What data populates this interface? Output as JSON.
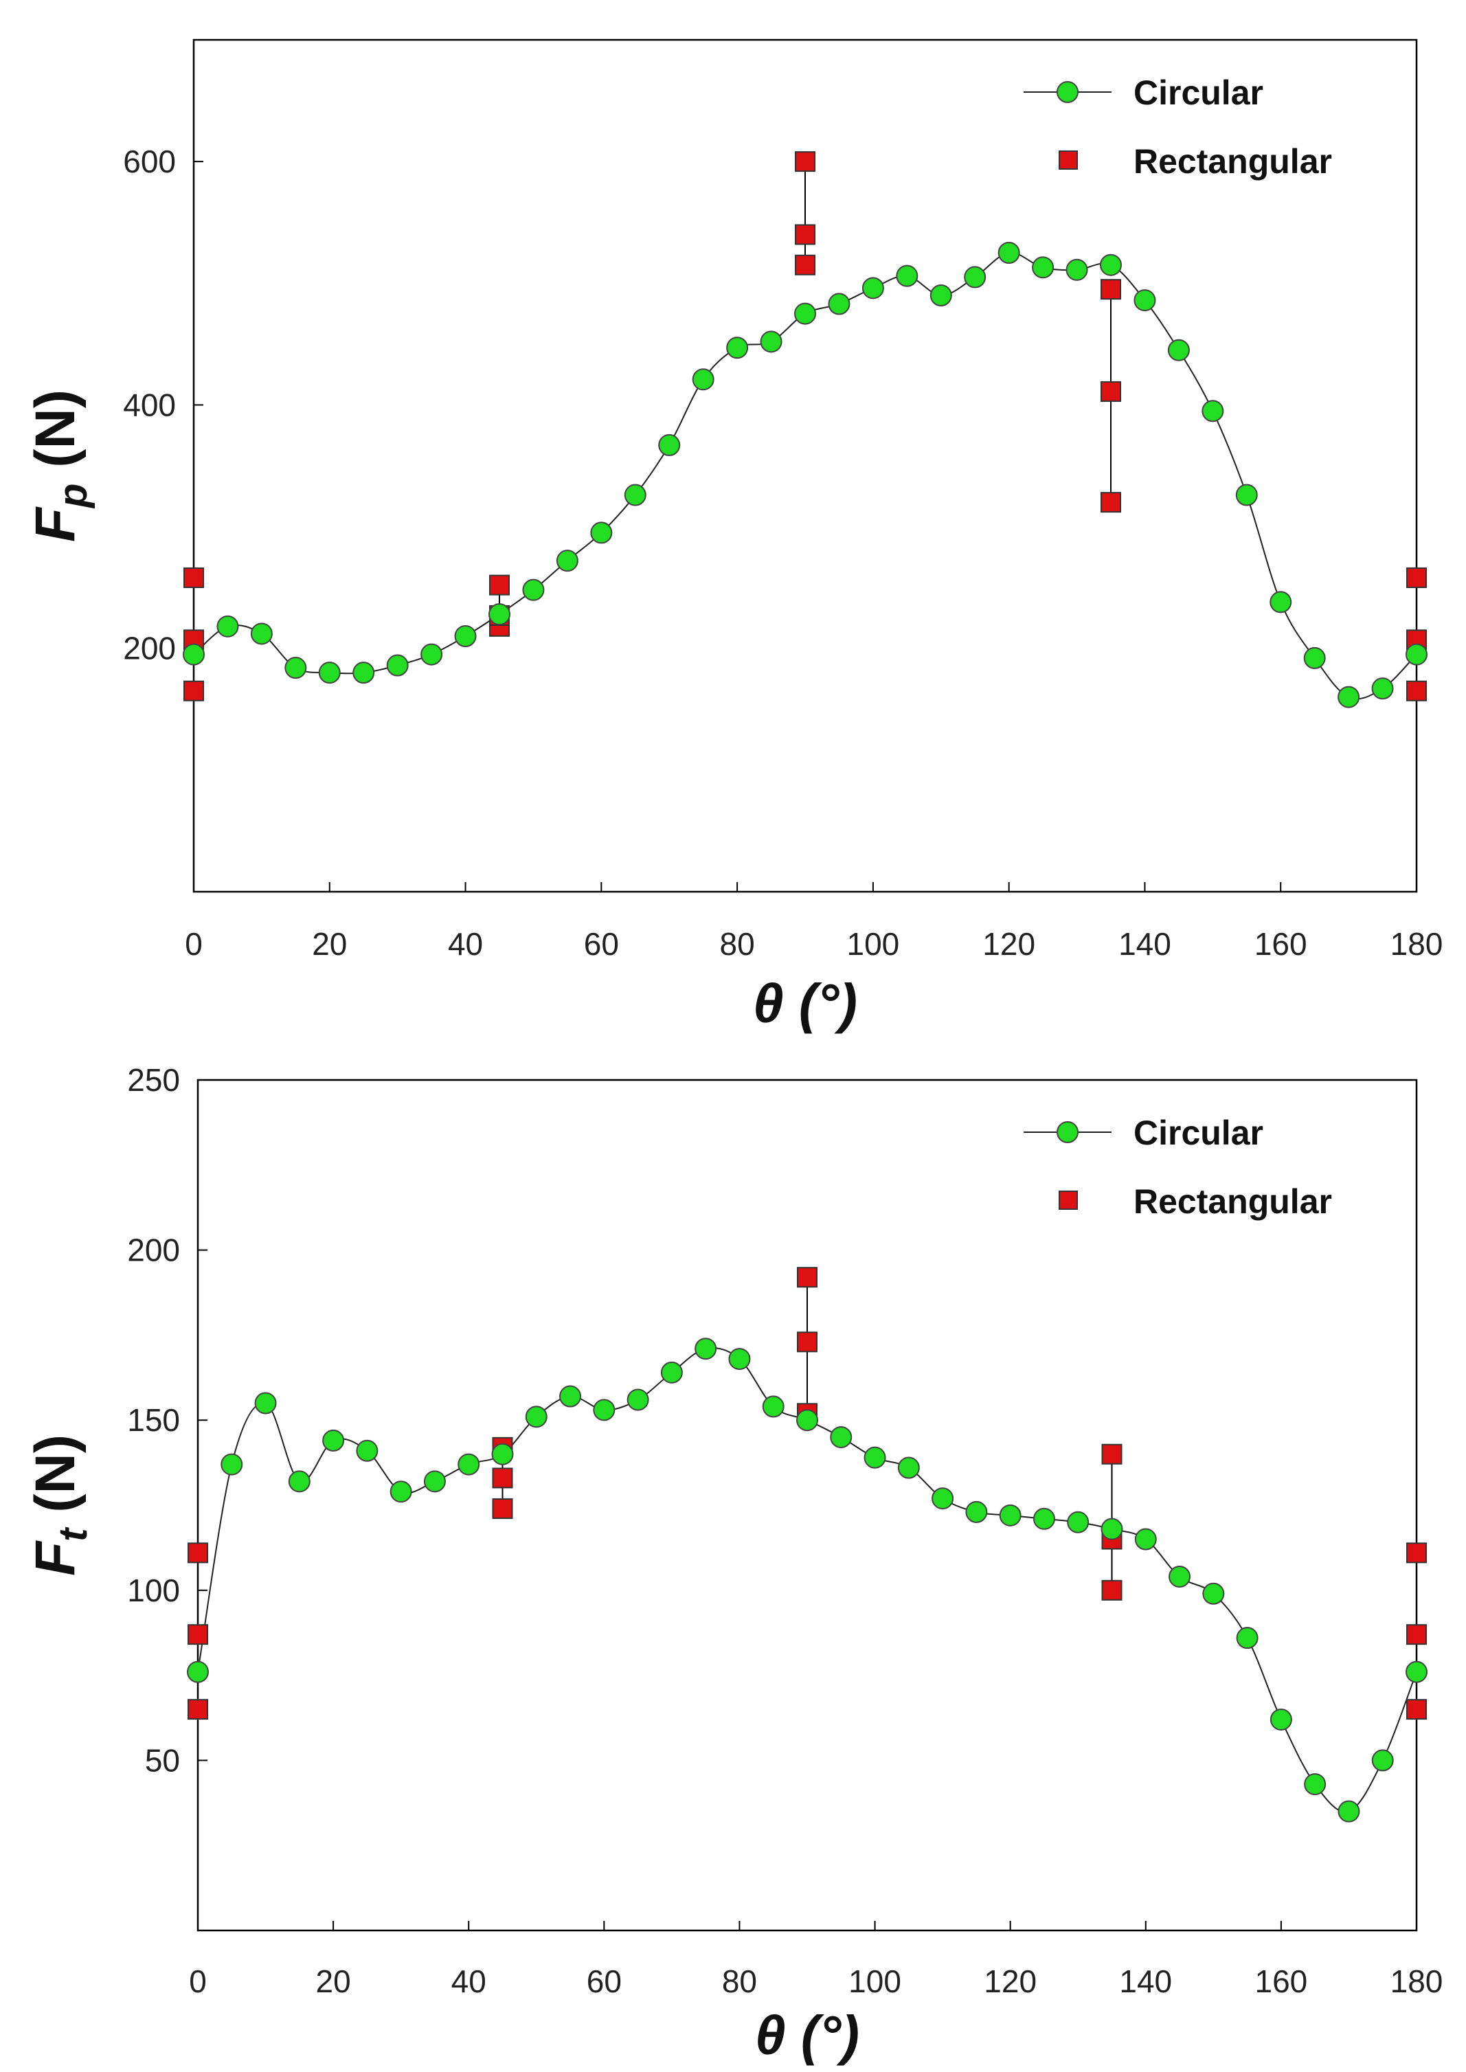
{
  "chart_data": [
    {
      "type": "scatter",
      "xlabel": "θ (°)",
      "ylabel": "Fp (N)",
      "ylabel_main": "F",
      "ylabel_sub": "p",
      "ylabel_unit": " (N)",
      "xlim": [
        0,
        180
      ],
      "ylim": [
        0,
        700
      ],
      "xticks": [
        0,
        20,
        40,
        60,
        80,
        100,
        120,
        140,
        160,
        180
      ],
      "yticks": [
        200,
        400,
        600
      ],
      "grid": false,
      "legend_position": "top-right",
      "series": [
        {
          "name": "Circular",
          "color": "#22dd22",
          "marker": "circle",
          "x": [
            0,
            5,
            10,
            15,
            20,
            25,
            30,
            35,
            40,
            45,
            50,
            55,
            60,
            65,
            70,
            75,
            80,
            85,
            90,
            95,
            100,
            105,
            110,
            115,
            120,
            125,
            130,
            135,
            140,
            145,
            150,
            155,
            160,
            165,
            170,
            175,
            180
          ],
          "y": [
            195,
            218,
            212,
            184,
            180,
            180,
            186,
            195,
            210,
            228,
            248,
            272,
            295,
            326,
            367,
            421,
            447,
            452,
            475,
            483,
            496,
            506,
            490,
            505,
            525,
            513,
            511,
            515,
            486,
            445,
            395,
            326,
            238,
            192,
            160,
            167,
            195
          ]
        },
        {
          "name": "Rectangular",
          "color": "#dd1111",
          "marker": "square",
          "x": [
            0,
            0,
            0,
            45,
            45,
            45,
            90,
            90,
            90,
            135,
            135,
            135,
            180,
            180,
            180
          ],
          "y": [
            165,
            207,
            258,
            218,
            227,
            252,
            515,
            540,
            600,
            320,
            411,
            495,
            165,
            207,
            258
          ]
        }
      ]
    },
    {
      "type": "scatter",
      "xlabel": "θ (°)",
      "ylabel": "Ft (N)",
      "ylabel_main": "F",
      "ylabel_sub": "t",
      "ylabel_unit": " (N)",
      "xlim": [
        0,
        180
      ],
      "ylim": [
        0,
        250
      ],
      "xticks": [
        0,
        20,
        40,
        60,
        80,
        100,
        120,
        140,
        160,
        180
      ],
      "yticks": [
        50,
        100,
        150,
        200,
        250
      ],
      "grid": false,
      "legend_position": "top-right",
      "series": [
        {
          "name": "Circular",
          "color": "#22dd22",
          "marker": "circle",
          "x": [
            0,
            5,
            10,
            15,
            20,
            25,
            30,
            35,
            40,
            45,
            50,
            55,
            60,
            65,
            70,
            75,
            80,
            85,
            90,
            95,
            100,
            105,
            110,
            115,
            120,
            125,
            130,
            135,
            140,
            145,
            150,
            155,
            160,
            165,
            170,
            175,
            180
          ],
          "y": [
            76,
            137,
            155,
            132,
            144,
            141,
            129,
            132,
            137,
            140,
            151,
            157,
            153,
            156,
            164,
            171,
            168,
            154,
            150,
            145,
            139,
            136,
            127,
            123,
            122,
            121,
            120,
            118,
            115,
            104,
            99,
            86,
            62,
            43,
            35,
            50,
            76
          ]
        },
        {
          "name": "Rectangular",
          "color": "#dd1111",
          "marker": "square",
          "x": [
            0,
            0,
            0,
            45,
            45,
            45,
            90,
            90,
            90,
            135,
            135,
            135,
            180,
            180,
            180
          ],
          "y": [
            65,
            87,
            111,
            124,
            133,
            142,
            152,
            173,
            192,
            100,
            115,
            140,
            65,
            87,
            111
          ]
        }
      ]
    }
  ]
}
